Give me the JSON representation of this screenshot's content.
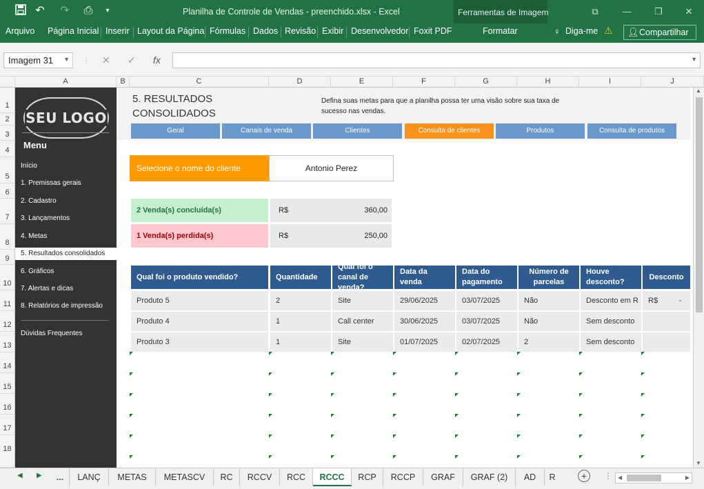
{
  "window": {
    "title": "Planilha de Controle de Vendas - preenchido.xlsx - Excel",
    "context_tab_title": "Ferramentas de Imagem"
  },
  "ribbon": {
    "tabs": [
      "Arquivo",
      "Página Inicial",
      "Inserir",
      "Layout da Página",
      "Fórmulas",
      "Dados",
      "Revisão",
      "Exibir",
      "Desenvolvedor",
      "Foxit PDF"
    ],
    "context_tab": "Formatar",
    "tell_me": "Diga-me",
    "share": "Compartilhar"
  },
  "formula_bar": {
    "name_box": "Imagem 31",
    "fx": "fx",
    "formula": ""
  },
  "columns": [
    "A",
    "B",
    "C",
    "D",
    "E",
    "F",
    "G",
    "H",
    "I",
    "J"
  ],
  "rows": [
    "1",
    "2",
    "3",
    "4",
    "5",
    "6",
    "7",
    "8",
    "9",
    "10",
    "11",
    "12",
    "13",
    "14",
    "15",
    "16",
    "17",
    "18"
  ],
  "sidebar": {
    "logo": "SEU LOGO",
    "menu_title": "Menu",
    "items": [
      "Início",
      "1. Premissas gerais",
      "2. Cadastro",
      "3. Lançamentos",
      "4. Metas",
      "5. Resultados consolidados",
      "6. Gráficos",
      "7. Alertas e dicas",
      "8. Relatórios de impressão"
    ],
    "active_index": 5,
    "footer_item": "Dúvidas Frequentes"
  },
  "section": {
    "title_line1": "5. RESULTADOS",
    "title_line2": "CONSOLIDADOS",
    "description": "Defina suas metas para que a planilha possa ter uma visão sobre sua taxa de sucesso nas vendas."
  },
  "nav_buttons": [
    "Geral",
    "Canais de venda",
    "Clientes",
    "Consulta de clientes",
    "Produtos",
    "Consulta de produtos"
  ],
  "nav_active": 3,
  "client": {
    "label": "Selecione o nome do cliente",
    "value": "Antonio Perez"
  },
  "stats": {
    "concluded_label": "2 Venda(s) concluída(s)",
    "concluded_currency": "R$",
    "concluded_value": "360,00",
    "lost_label": "1 Venda(s) perdida(s)",
    "lost_currency": "R$",
    "lost_value": "250,00"
  },
  "table": {
    "headers": [
      "Qual foi o produto vendido?",
      "Quantidade",
      "Qual foi o canal de venda?",
      "Data da venda",
      "Data do pagamento",
      "Número de parcelas",
      "Houve desconto?",
      "Desconto"
    ],
    "rows": [
      [
        "Produto 5",
        "2",
        "Site",
        "29/06/2025",
        "03/07/2025",
        "Não",
        "Desconto em R",
        "R$          -"
      ],
      [
        "Produto 4",
        "1",
        "Call center",
        "30/06/2025",
        "03/07/2025",
        "Não",
        "Sem desconto",
        ""
      ],
      [
        "Produto 3",
        "1",
        "Site",
        "01/07/2025",
        "02/07/2025",
        "2",
        "Sem desconto",
        ""
      ]
    ]
  },
  "sheet_tabs": [
    "...",
    "LANÇ",
    "METAS",
    "METASCV",
    "RC",
    "RCCV",
    "RCC",
    "RCCC",
    "RCP",
    "RCCP",
    "GRAF",
    "GRAF (2)",
    "AD",
    "R"
  ],
  "active_sheet": "RCCC",
  "colors": {
    "excel_green": "#217346",
    "nav_blue": "#6b98cb",
    "nav_active": "#f7921e",
    "header_blue": "#2f5b8f",
    "client_orange": "#ff9a00",
    "sidebar": "#333333"
  }
}
